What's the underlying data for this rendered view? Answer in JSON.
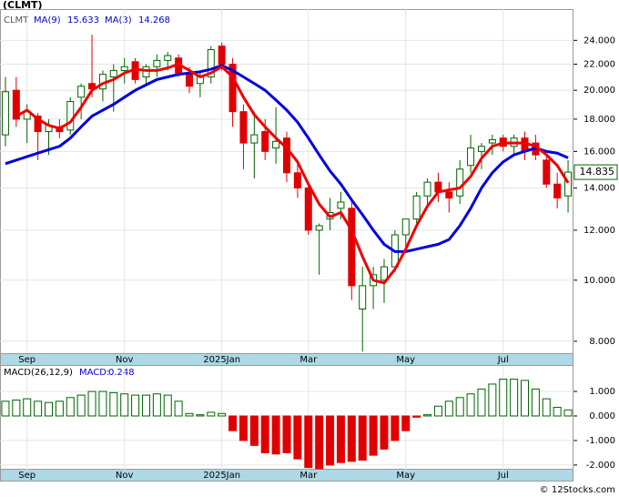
{
  "chart_data": [
    {
      "type": "candlestick",
      "title": "(CLMT)",
      "ticker": "CLMT",
      "categories": [
        null,
        null,
        "Sep",
        null,
        null,
        null,
        null,
        null,
        null,
        null,
        null,
        "Nov",
        null,
        null,
        null,
        null,
        null,
        null,
        null,
        null,
        "2025Jan",
        null,
        null,
        null,
        null,
        null,
        null,
        null,
        "Mar",
        null,
        null,
        null,
        null,
        null,
        null,
        null,
        null,
        "May",
        null,
        null,
        null,
        null,
        null,
        null,
        null,
        null,
        "Jul",
        null,
        null,
        null,
        null,
        null,
        null
      ],
      "open": [
        17.0,
        20.0,
        18.0,
        18.2,
        17.2,
        17.5,
        17.3,
        19.5,
        20.5,
        20.1,
        21.0,
        21.5,
        22.2,
        21.0,
        21.8,
        22.3,
        22.5,
        21.3,
        20.5,
        21.0,
        23.5,
        22.0,
        18.5,
        16.5,
        17.2,
        16.2,
        16.8,
        14.8,
        14.0,
        12.0,
        12.5,
        13.0,
        13.0,
        9.0,
        9.8,
        10.0,
        10.5,
        11.8,
        12.5,
        13.6,
        14.3,
        13.8,
        13.6,
        15.2,
        16.0,
        16.5,
        16.8,
        16.3,
        16.8,
        16.5,
        15.5,
        14.2,
        13.6
      ],
      "high": [
        21.0,
        21.0,
        19.0,
        18.4,
        18.0,
        18.0,
        19.5,
        20.5,
        24.5,
        21.5,
        22.0,
        22.5,
        22.5,
        22.0,
        22.8,
        23.0,
        22.8,
        21.8,
        21.5,
        23.5,
        23.8,
        22.5,
        19.0,
        18.5,
        18.0,
        18.8,
        17.2,
        15.5,
        14.2,
        12.3,
        13.5,
        13.8,
        13.5,
        10.5,
        10.5,
        10.8,
        12.0,
        12.5,
        13.8,
        14.5,
        14.8,
        14.3,
        15.5,
        17.0,
        16.5,
        17.0,
        17.0,
        17.0,
        17.2,
        17.0,
        15.8,
        14.8,
        15.5
      ],
      "low": [
        16.3,
        17.5,
        16.5,
        15.5,
        15.8,
        16.8,
        17.0,
        18.0,
        19.5,
        19.2,
        18.5,
        20.5,
        20.5,
        20.5,
        21.0,
        21.5,
        21.0,
        19.8,
        19.5,
        20.5,
        21.5,
        17.5,
        15.0,
        14.5,
        15.5,
        15.3,
        14.3,
        13.5,
        11.8,
        10.2,
        12.0,
        12.5,
        9.3,
        7.7,
        9.0,
        9.2,
        10.3,
        11.3,
        12.3,
        13.2,
        13.3,
        12.8,
        13.2,
        14.8,
        15.0,
        15.8,
        16.0,
        15.8,
        15.5,
        15.5,
        14.0,
        13.0,
        12.8
      ],
      "close": [
        19.9,
        18.0,
        18.5,
        17.2,
        17.6,
        17.2,
        19.2,
        20.3,
        20.1,
        21.2,
        21.5,
        21.8,
        20.8,
        21.8,
        22.3,
        22.7,
        21.3,
        20.3,
        21.0,
        23.2,
        22.0,
        18.5,
        16.5,
        17.0,
        16.0,
        16.6,
        14.8,
        14.0,
        12.0,
        12.2,
        12.8,
        13.3,
        9.8,
        9.8,
        10.2,
        10.5,
        11.8,
        12.5,
        13.6,
        14.3,
        13.8,
        13.5,
        15.0,
        16.2,
        16.3,
        16.7,
        16.3,
        16.8,
        16.0,
        15.8,
        14.2,
        13.5,
        14.835
      ],
      "series": [
        {
          "name": "MA(9)",
          "color": "#0000dd",
          "values": [
            15.3,
            15.5,
            15.7,
            15.9,
            16.1,
            16.3,
            16.8,
            17.5,
            18.2,
            18.6,
            19.0,
            19.5,
            20.0,
            20.4,
            20.8,
            21.0,
            21.2,
            21.3,
            21.4,
            21.6,
            21.9,
            21.5,
            21.0,
            20.5,
            20.0,
            19.3,
            18.6,
            17.8,
            16.8,
            15.8,
            14.9,
            14.2,
            13.4,
            12.7,
            12.0,
            11.4,
            11.1,
            11.1,
            11.2,
            11.3,
            11.4,
            11.6,
            12.2,
            13.0,
            14.0,
            14.8,
            15.4,
            15.8,
            16.0,
            16.2,
            16.0,
            15.9,
            15.633
          ]
        },
        {
          "name": "MA(3)",
          "color": "#ee0000",
          "values": [
            null,
            18.2,
            18.6,
            18.0,
            17.6,
            17.4,
            17.8,
            18.8,
            20.0,
            20.5,
            20.8,
            21.3,
            21.6,
            21.5,
            21.5,
            21.7,
            22.0,
            21.5,
            21.0,
            21.3,
            21.8,
            21.0,
            19.5,
            18.3,
            17.5,
            16.8,
            16.2,
            15.4,
            14.2,
            13.2,
            12.6,
            12.8,
            12.0,
            10.9,
            10.0,
            9.9,
            10.4,
            11.2,
            12.2,
            13.1,
            13.8,
            13.9,
            14.0,
            14.6,
            15.6,
            16.3,
            16.5,
            16.5,
            16.5,
            16.3,
            15.8,
            15.2,
            14.268
          ]
        }
      ],
      "up_color": "#006400",
      "down_color": "#e00000",
      "log": true,
      "grid": true,
      "ylim": [
        7.66,
        26.9
      ],
      "yticks": [
        {
          "value": 8,
          "label": "8.000"
        },
        {
          "value": 10,
          "label": "10.000"
        },
        {
          "value": 12,
          "label": "12.000"
        },
        {
          "value": 14,
          "label": "14.000"
        },
        {
          "value": 16,
          "label": "16.000"
        },
        {
          "value": 18,
          "label": "18.000"
        },
        {
          "value": 20,
          "label": "20.000"
        },
        {
          "value": 22,
          "label": "22.000"
        },
        {
          "value": 24,
          "label": "24.000"
        }
      ]
    },
    {
      "type": "bar",
      "title": "MACD(26,12,9)",
      "value_name": "MACD:",
      "categories": [
        null,
        null,
        "Sep",
        null,
        null,
        null,
        null,
        null,
        null,
        null,
        null,
        "Nov",
        null,
        null,
        null,
        null,
        null,
        null,
        null,
        null,
        "2025Jan",
        null,
        null,
        null,
        null,
        null,
        null,
        null,
        "Mar",
        null,
        null,
        null,
        null,
        null,
        null,
        null,
        null,
        "May",
        null,
        null,
        null,
        null,
        null,
        null,
        null,
        null,
        "Jul",
        null,
        null,
        null,
        null,
        null,
        null
      ],
      "values": [
        0.6,
        0.65,
        0.7,
        0.6,
        0.55,
        0.6,
        0.75,
        0.85,
        1.0,
        1.0,
        0.95,
        0.9,
        0.85,
        0.85,
        0.9,
        0.85,
        0.6,
        0.1,
        0.05,
        0.15,
        0.1,
        -0.6,
        -1.0,
        -1.2,
        -1.5,
        -1.55,
        -1.5,
        -1.75,
        -2.1,
        -2.15,
        -2.0,
        -1.9,
        -1.85,
        -1.8,
        -1.6,
        -1.35,
        -1.0,
        -0.6,
        -0.05,
        0.05,
        0.4,
        0.6,
        0.75,
        0.9,
        1.1,
        1.3,
        1.5,
        1.5,
        1.45,
        1.1,
        0.7,
        0.35,
        0.248
      ],
      "up_color": "#006400",
      "down_color": "#e00000",
      "grid": true,
      "ylim": [
        -2.19,
        2.04
      ],
      "yticks": [
        {
          "value": -2,
          "label": "-2.000"
        },
        {
          "value": -1,
          "label": "-1.000"
        },
        {
          "value": 0,
          "label": "0.000"
        },
        {
          "value": 1,
          "label": "1.000"
        }
      ]
    }
  ],
  "footer": "© 12Stocks.com"
}
